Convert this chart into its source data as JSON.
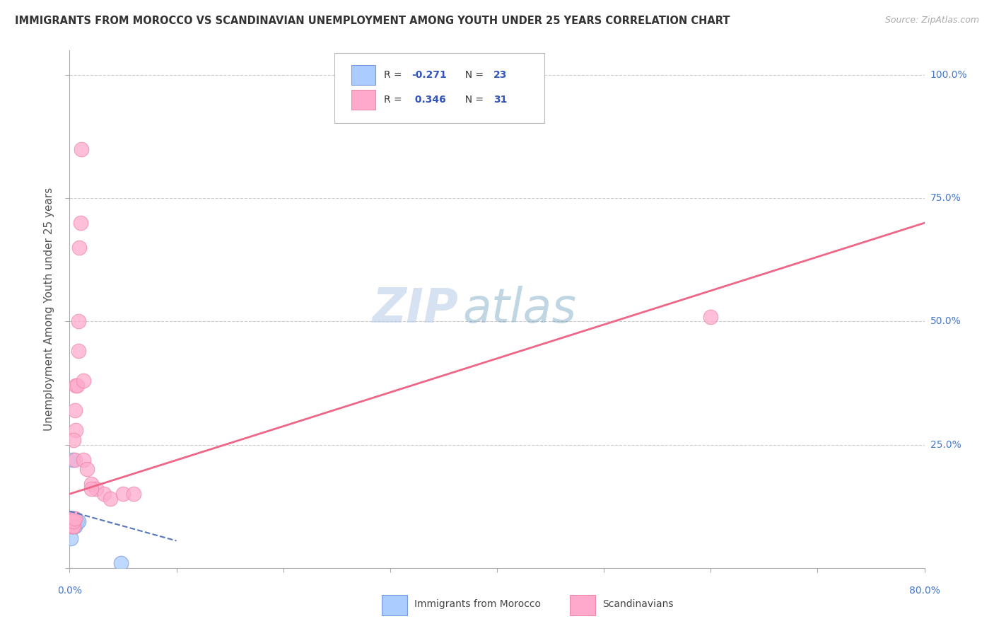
{
  "title": "IMMIGRANTS FROM MOROCCO VS SCANDINAVIAN UNEMPLOYMENT AMONG YOUTH UNDER 25 YEARS CORRELATION CHART",
  "source": "Source: ZipAtlas.com",
  "ylabel": "Unemployment Among Youth under 25 years",
  "xlim": [
    0.0,
    0.8
  ],
  "ylim": [
    0.0,
    1.05
  ],
  "yticks": [
    0.0,
    0.25,
    0.5,
    0.75,
    1.0
  ],
  "xticks": [
    0.0,
    0.1,
    0.2,
    0.3,
    0.4,
    0.5,
    0.6,
    0.7,
    0.8
  ],
  "color_blue_fill": "#AACCFF",
  "color_blue_edge": "#7799DD",
  "color_pink_fill": "#FFAACC",
  "color_pink_edge": "#EE88AA",
  "color_trendline_blue": "#5577BB",
  "color_trendline_pink": "#EE6688",
  "color_grid": "#CCCCCC",
  "color_right_label": "#4477CC",
  "color_title": "#333333",
  "color_source": "#AAAAAA",
  "color_ylabel": "#555555",
  "watermark_color": "#D0E0F5",
  "legend_text_color": "#333333",
  "legend_r_color": "#3355BB",
  "morocco_x": [
    0.001,
    0.001,
    0.002,
    0.002,
    0.002,
    0.003,
    0.003,
    0.003,
    0.003,
    0.004,
    0.004,
    0.004,
    0.005,
    0.005,
    0.005,
    0.006,
    0.006,
    0.007,
    0.008,
    0.009,
    0.01,
    0.05,
    0.001
  ],
  "morocco_y": [
    0.08,
    0.1,
    0.08,
    0.09,
    0.1,
    0.08,
    0.09,
    0.1,
    0.1,
    0.08,
    0.09,
    0.1,
    0.08,
    0.09,
    0.1,
    0.1,
    0.1,
    0.1,
    0.1,
    0.1,
    0.1,
    0.01,
    0.22
  ],
  "scand_x": [
    0.001,
    0.002,
    0.002,
    0.003,
    0.003,
    0.004,
    0.004,
    0.005,
    0.005,
    0.006,
    0.006,
    0.007,
    0.007,
    0.008,
    0.009,
    0.01,
    0.011,
    0.013,
    0.015,
    0.02,
    0.025,
    0.03,
    0.035,
    0.04,
    0.05,
    0.065,
    0.003,
    0.004,
    0.006,
    0.6,
    0.012
  ],
  "scand_y": [
    0.1,
    0.08,
    0.1,
    0.1,
    0.25,
    0.27,
    0.32,
    0.36,
    0.44,
    0.5,
    0.22,
    0.65,
    0.7,
    0.85,
    0.22,
    0.2,
    0.37,
    0.38,
    0.2,
    0.16,
    0.15,
    0.14,
    0.14,
    0.16,
    0.15,
    0.15,
    0.1,
    0.09,
    0.08,
    0.51,
    0.1
  ],
  "blue_trendline_x": [
    0.0,
    0.1
  ],
  "blue_trendline_y": [
    0.115,
    0.055
  ],
  "pink_trendline_x": [
    0.0,
    0.8
  ],
  "pink_trendline_y": [
    0.15,
    0.7
  ]
}
